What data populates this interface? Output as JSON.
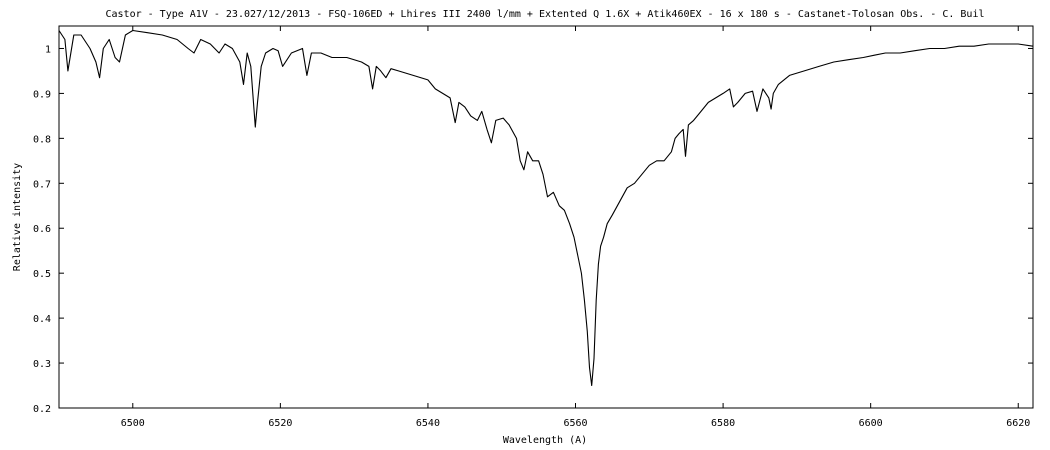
{
  "chart_data": {
    "type": "line",
    "title": "Castor - Type A1V - 23.027/12/2013 - FSQ-106ED + Lhires III 2400 l/mm + Extented Q 1.6X  + Atik460EX - 16 x 180 s - Castanet-Tolosan Obs. - C. Buil",
    "xlabel": "Wavelength (A)",
    "ylabel": "Relative intensity",
    "xlim": [
      6490,
      6622
    ],
    "ylim": [
      0.2,
      1.05
    ],
    "x_ticks": [
      6500,
      6520,
      6540,
      6560,
      6580,
      6600,
      6620
    ],
    "x_tick_labels": [
      "6500",
      "6520",
      "6540",
      "6560",
      "6580",
      "6600",
      "6620"
    ],
    "y_ticks": [
      0.2,
      0.3,
      0.4,
      0.5,
      0.6,
      0.7,
      0.8,
      0.9,
      1.0
    ],
    "y_tick_labels": [
      "0.2",
      "0.3",
      "0.4",
      "0.5",
      "0.6",
      "0.7",
      "0.8",
      "0.9",
      "1"
    ],
    "grid": false,
    "legend": "none",
    "line_color": "#000000",
    "series": [
      {
        "x": [
          6490,
          6490.8,
          6491.2,
          6492,
          6493,
          6494.2,
          6495,
          6495.5,
          6496,
          6496.8,
          6497.6,
          6498.2,
          6499,
          6500,
          6502,
          6504,
          6506,
          6507.5,
          6508.3,
          6509.2,
          6510.5,
          6511.7,
          6512.5,
          6513.5,
          6514.5,
          6515,
          6515.5,
          6516,
          6516.4,
          6516.6,
          6516.9,
          6517.4,
          6518,
          6519,
          6519.7,
          6520.3,
          6521.5,
          6523,
          6523.6,
          6524.2,
          6525.5,
          6527,
          6529,
          6531,
          6532,
          6532.5,
          6533,
          6533.6,
          6534.3,
          6535,
          6536,
          6538,
          6540,
          6541,
          6542,
          6543,
          6543.7,
          6544.2,
          6545,
          6545.8,
          6546.7,
          6547.3,
          6548,
          6548.6,
          6549.2,
          6550.2,
          6551,
          6552,
          6552.5,
          6553,
          6553.5,
          6554.2,
          6555,
          6555.6,
          6556.2,
          6557,
          6557.8,
          6558.5,
          6559.2,
          6559.8,
          6560.3,
          6560.8,
          6561.2,
          6561.6,
          6561.9,
          6562.2,
          6562.5,
          6562.8,
          6563.1,
          6563.4,
          6563.8,
          6564.3,
          6565,
          6566,
          6567,
          6568,
          6569,
          6570,
          6571,
          6572,
          6573,
          6573.5,
          6574,
          6574.6,
          6574.9,
          6575.3,
          6576,
          6577,
          6578,
          6579,
          6580,
          6580.9,
          6581.4,
          6582,
          6583,
          6584,
          6584.6,
          6585.4,
          6586.2,
          6586.5,
          6586.8,
          6587.5,
          6589,
          6591,
          6593,
          6595,
          6597,
          6599,
          6600.5,
          6602,
          6604,
          6606,
          6608,
          6610,
          6612,
          6614,
          6616,
          6618,
          6620,
          6622
        ],
        "values": [
          1.04,
          1.02,
          0.95,
          1.03,
          1.03,
          1.0,
          0.97,
          0.935,
          1.0,
          1.02,
          0.98,
          0.97,
          1.03,
          1.04,
          1.035,
          1.03,
          1.02,
          1.0,
          0.99,
          1.02,
          1.01,
          0.99,
          1.01,
          1.0,
          0.97,
          0.92,
          0.99,
          0.96,
          0.87,
          0.825,
          0.88,
          0.96,
          0.99,
          1.0,
          0.995,
          0.96,
          0.99,
          1.0,
          0.94,
          0.99,
          0.99,
          0.98,
          0.98,
          0.97,
          0.96,
          0.91,
          0.96,
          0.95,
          0.935,
          0.955,
          0.95,
          0.94,
          0.93,
          0.91,
          0.9,
          0.89,
          0.835,
          0.88,
          0.87,
          0.85,
          0.84,
          0.86,
          0.82,
          0.79,
          0.84,
          0.845,
          0.83,
          0.8,
          0.75,
          0.73,
          0.77,
          0.75,
          0.75,
          0.72,
          0.67,
          0.68,
          0.65,
          0.64,
          0.61,
          0.58,
          0.54,
          0.5,
          0.44,
          0.37,
          0.29,
          0.25,
          0.31,
          0.44,
          0.52,
          0.56,
          0.58,
          0.61,
          0.63,
          0.66,
          0.69,
          0.7,
          0.72,
          0.74,
          0.75,
          0.75,
          0.77,
          0.8,
          0.81,
          0.82,
          0.76,
          0.83,
          0.84,
          0.86,
          0.88,
          0.89,
          0.9,
          0.91,
          0.87,
          0.88,
          0.9,
          0.905,
          0.86,
          0.91,
          0.89,
          0.865,
          0.9,
          0.92,
          0.94,
          0.95,
          0.96,
          0.97,
          0.975,
          0.98,
          0.985,
          0.99,
          0.99,
          0.995,
          1.0,
          1.0,
          1.005,
          1.005,
          1.01,
          1.01,
          1.01,
          1.005
        ]
      }
    ]
  }
}
